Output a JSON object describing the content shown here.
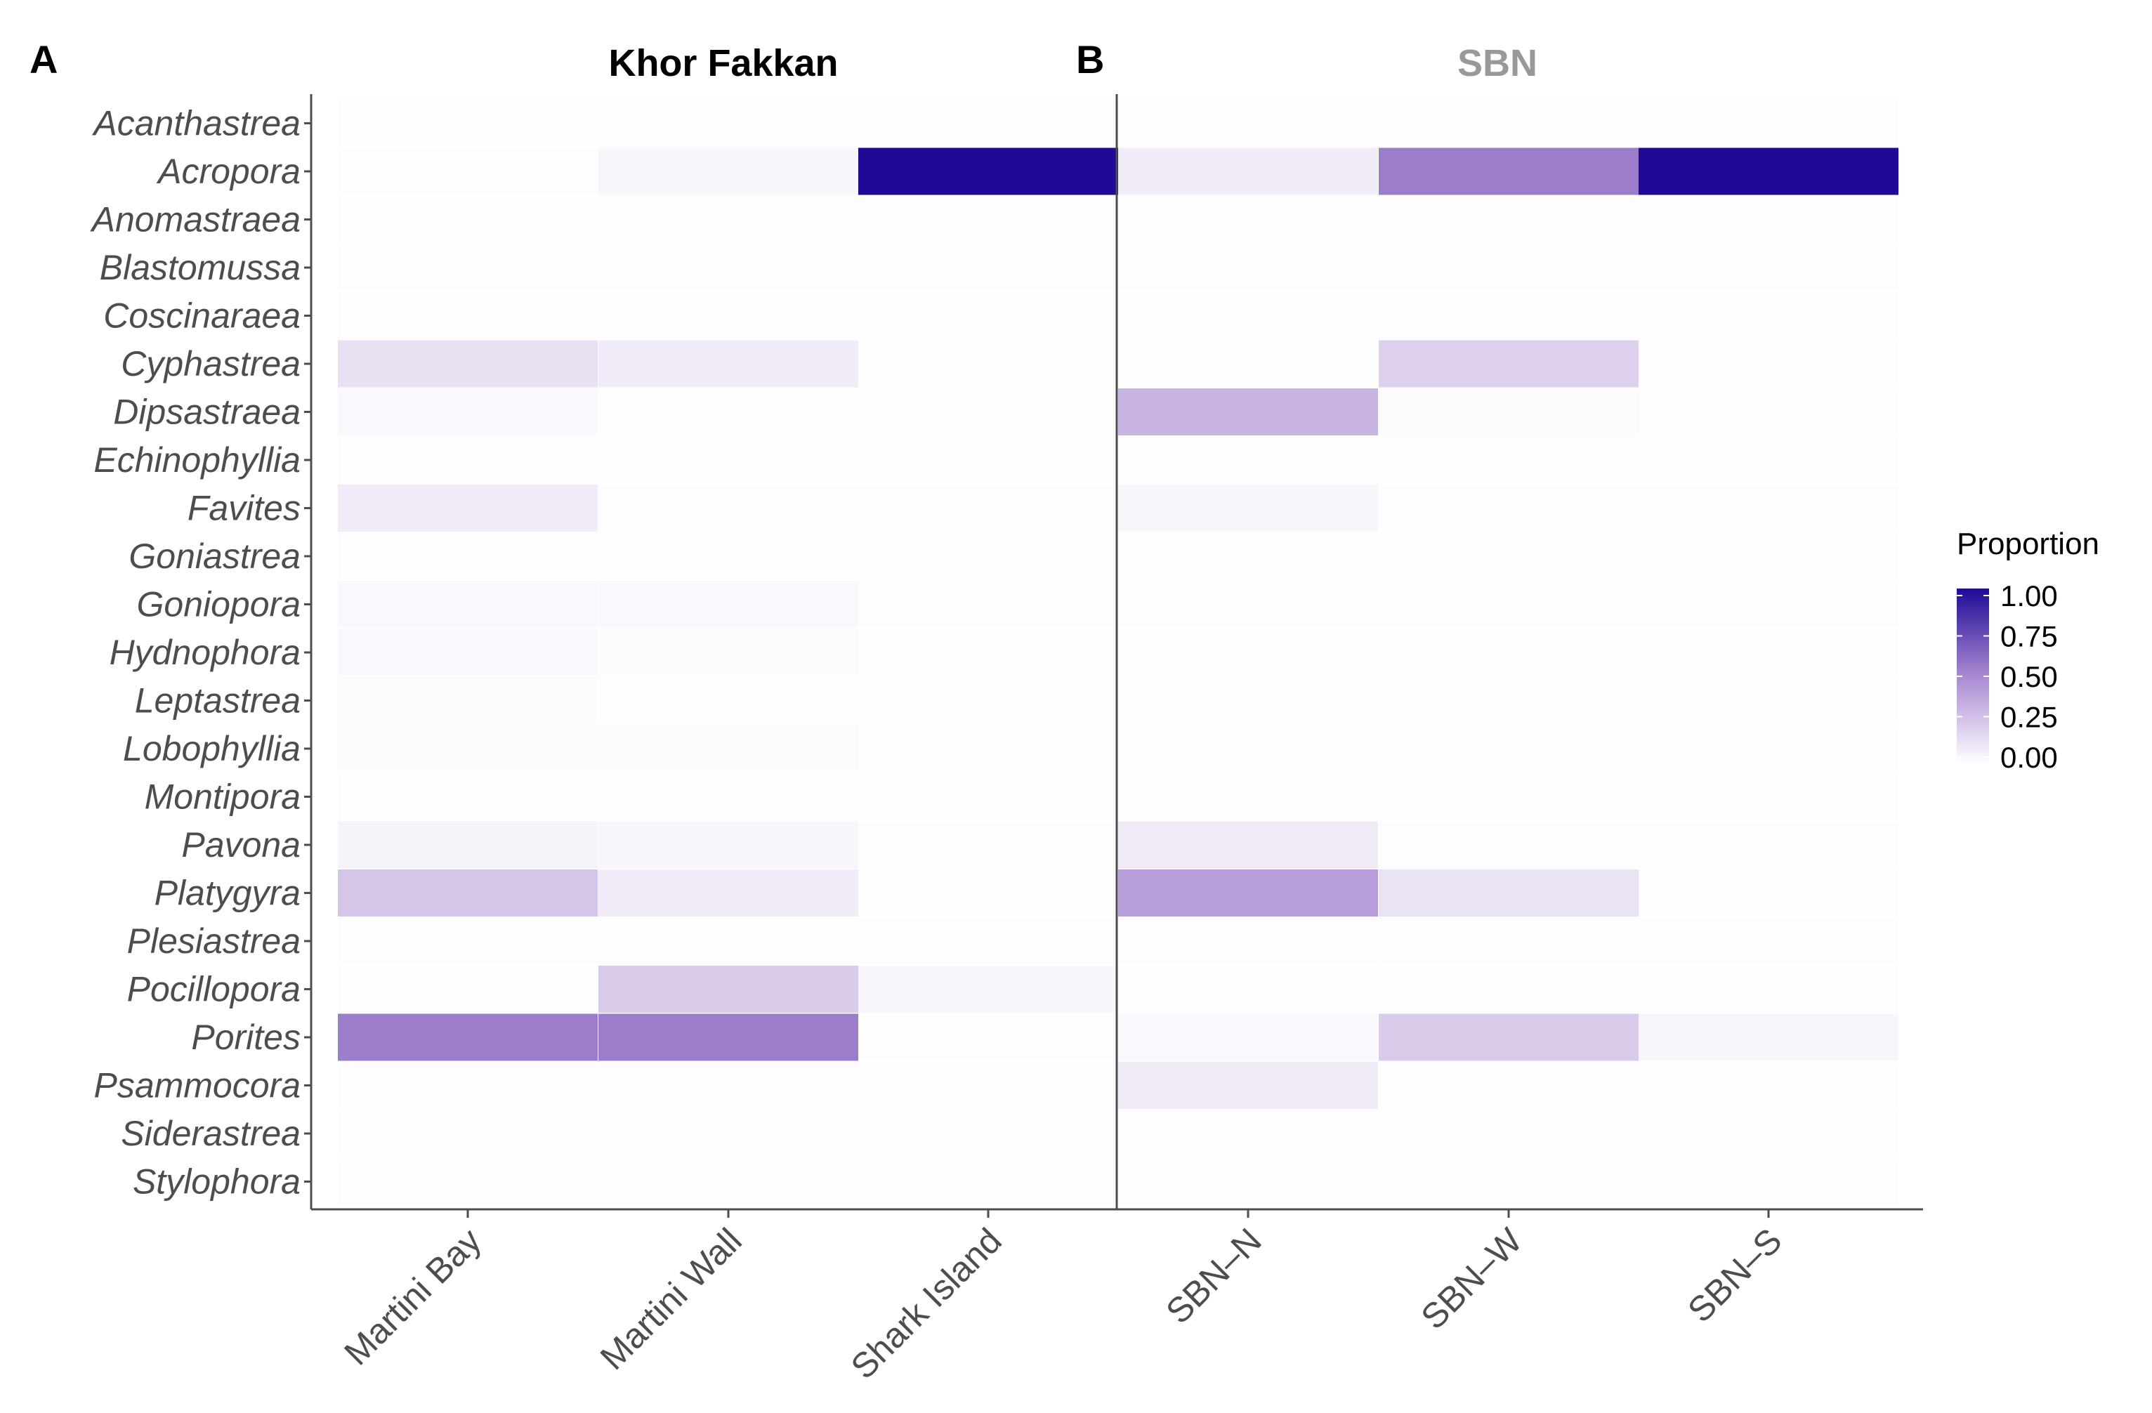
{
  "panels": [
    {
      "letter": "A",
      "title": "Khor Fakkan",
      "title_color": "#000000"
    },
    {
      "letter": "B",
      "title": "SBN",
      "title_color": "#999999"
    }
  ],
  "legend": {
    "title": "Proportion",
    "ticks": [
      "1.00",
      "0.75",
      "0.50",
      "0.25",
      "0.00"
    ],
    "colors": {
      "low": "#ffffff",
      "mid": "#a98ad2",
      "high": "#1f0a96"
    }
  },
  "chart_data": {
    "type": "heatmap",
    "fill_label": "Proportion",
    "fill_range": [
      0,
      1
    ],
    "sites": [
      "Martini Bay",
      "Martini Wall",
      "Shark Island",
      "SBN–N",
      "SBN–W",
      "SBN–S"
    ],
    "site_panel": [
      0,
      0,
      0,
      1,
      1,
      1
    ],
    "genera": [
      "Acanthastrea",
      "Acropora",
      "Anomastraea",
      "Blastomussa",
      "Coscinaraea",
      "Cyphastrea",
      "Dipsastraea",
      "Echinophyllia",
      "Favites",
      "Goniastrea",
      "Goniopora",
      "Hydnophora",
      "Leptastrea",
      "Lobophyllia",
      "Montipora",
      "Pavona",
      "Platygyra",
      "Plesiastrea",
      "Pocillopora",
      "Porites",
      "Psammocora",
      "Siderastrea",
      "Stylophora"
    ],
    "values": [
      [
        0.0,
        0.0,
        0.0,
        0.0,
        0.0,
        0.0
      ],
      [
        0.01,
        0.04,
        1.0,
        0.08,
        0.55,
        1.0
      ],
      [
        0.0,
        0.0,
        0.0,
        0.0,
        0.0,
        0.0
      ],
      [
        0.0,
        0.0,
        0.0,
        0.0,
        0.0,
        0.0
      ],
      [
        0.0,
        0.0,
        0.0,
        0.0,
        0.0,
        0.0
      ],
      [
        0.13,
        0.08,
        0.01,
        0.01,
        0.2,
        0.01
      ],
      [
        0.03,
        0.01,
        0.01,
        0.32,
        0.02,
        0.0
      ],
      [
        0.01,
        0.01,
        0.0,
        0.0,
        0.0,
        0.0
      ],
      [
        0.08,
        0.0,
        0.0,
        0.04,
        0.0,
        0.0
      ],
      [
        0.0,
        0.0,
        0.0,
        0.0,
        0.0,
        0.0
      ],
      [
        0.03,
        0.03,
        0.0,
        0.0,
        0.0,
        0.0
      ],
      [
        0.03,
        0.02,
        0.01,
        0.0,
        0.0,
        0.0
      ],
      [
        0.02,
        0.01,
        0.0,
        0.0,
        0.0,
        0.0
      ],
      [
        0.02,
        0.02,
        0.0,
        0.0,
        0.0,
        0.0
      ],
      [
        0.0,
        0.0,
        0.0,
        0.0,
        0.0,
        0.0
      ],
      [
        0.05,
        0.04,
        0.0,
        0.09,
        0.0,
        0.0
      ],
      [
        0.25,
        0.08,
        0.01,
        0.42,
        0.12,
        0.01
      ],
      [
        0.01,
        0.0,
        0.0,
        0.0,
        0.0,
        0.0
      ],
      [
        0.0,
        0.22,
        0.04,
        0.0,
        0.0,
        0.0
      ],
      [
        0.55,
        0.55,
        0.01,
        0.03,
        0.22,
        0.04
      ],
      [
        0.0,
        0.0,
        0.0,
        0.08,
        0.0,
        0.0
      ],
      [
        0.0,
        0.0,
        0.0,
        0.0,
        0.0,
        0.0
      ],
      [
        0.01,
        0.0,
        0.0,
        0.01,
        0.0,
        0.0
      ]
    ]
  }
}
